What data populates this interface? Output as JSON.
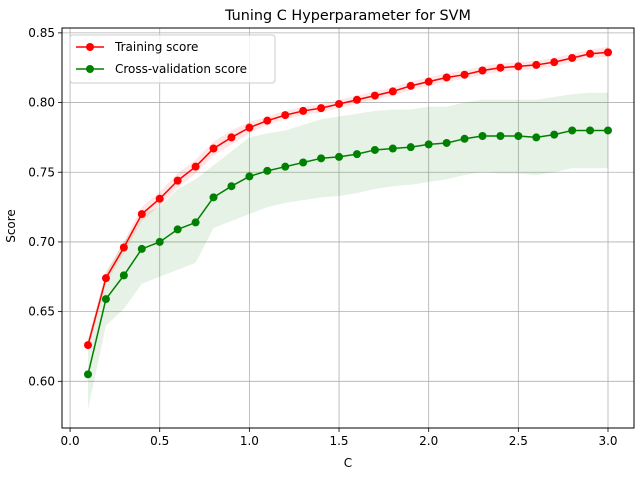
{
  "chart_data": {
    "type": "line",
    "title": "Tuning C Hyperparameter for SVM",
    "xlabel": "C",
    "ylabel": "Score",
    "xlim": [
      -0.045,
      3.145
    ],
    "ylim": [
      0.5665,
      0.8535
    ],
    "xticks": [
      0.0,
      0.5,
      1.0,
      1.5,
      2.0,
      2.5,
      3.0
    ],
    "xtick_labels": [
      "0.0",
      "0.5",
      "1.0",
      "1.5",
      "2.0",
      "2.5",
      "3.0"
    ],
    "yticks": [
      0.6,
      0.65,
      0.7,
      0.75,
      0.8,
      0.85
    ],
    "ytick_labels": [
      "0.60",
      "0.65",
      "0.70",
      "0.75",
      "0.80",
      "0.85"
    ],
    "grid": true,
    "legend_position": "upper-left",
    "x": [
      0.1,
      0.2,
      0.3,
      0.4,
      0.5,
      0.6,
      0.7,
      0.8,
      0.9,
      1.0,
      1.1,
      1.2,
      1.3,
      1.4,
      1.5,
      1.6,
      1.7,
      1.8,
      1.9,
      2.0,
      2.1,
      2.2,
      2.3,
      2.4,
      2.5,
      2.6,
      2.7,
      2.8,
      2.9,
      3.0
    ],
    "series": [
      {
        "name": "Training score",
        "color": "#ff0000",
        "values": [
          0.626,
          0.674,
          0.696,
          0.72,
          0.731,
          0.744,
          0.754,
          0.767,
          0.775,
          0.782,
          0.787,
          0.791,
          0.794,
          0.796,
          0.799,
          0.802,
          0.805,
          0.808,
          0.812,
          0.815,
          0.818,
          0.82,
          0.823,
          0.825,
          0.826,
          0.827,
          0.829,
          0.832,
          0.835,
          0.836
        ],
        "band_lower": [
          0.622,
          0.67,
          0.692,
          0.715,
          0.726,
          0.739,
          0.749,
          0.762,
          0.77,
          0.778,
          0.784,
          0.788,
          0.791,
          0.793,
          0.796,
          0.799,
          0.802,
          0.805,
          0.809,
          0.812,
          0.815,
          0.817,
          0.82,
          0.822,
          0.823,
          0.824,
          0.826,
          0.829,
          0.832,
          0.833
        ],
        "band_upper": [
          0.63,
          0.678,
          0.7,
          0.725,
          0.736,
          0.749,
          0.759,
          0.772,
          0.78,
          0.786,
          0.79,
          0.794,
          0.797,
          0.799,
          0.802,
          0.805,
          0.808,
          0.811,
          0.815,
          0.818,
          0.821,
          0.823,
          0.826,
          0.828,
          0.829,
          0.83,
          0.832,
          0.835,
          0.838,
          0.84
        ],
        "band_color": "#ff0000"
      },
      {
        "name": "Cross-validation score",
        "color": "#008000",
        "values": [
          0.605,
          0.659,
          0.676,
          0.695,
          0.7,
          0.709,
          0.714,
          0.732,
          0.74,
          0.747,
          0.751,
          0.754,
          0.757,
          0.76,
          0.761,
          0.763,
          0.766,
          0.767,
          0.768,
          0.77,
          0.771,
          0.774,
          0.776,
          0.776,
          0.776,
          0.775,
          0.777,
          0.78,
          0.78,
          0.78
        ],
        "band_lower": [
          0.58,
          0.64,
          0.652,
          0.67,
          0.675,
          0.68,
          0.685,
          0.71,
          0.715,
          0.72,
          0.725,
          0.728,
          0.73,
          0.732,
          0.733,
          0.735,
          0.738,
          0.74,
          0.741,
          0.743,
          0.745,
          0.748,
          0.75,
          0.749,
          0.749,
          0.748,
          0.75,
          0.753,
          0.753,
          0.753
        ],
        "band_upper": [
          0.63,
          0.678,
          0.7,
          0.72,
          0.725,
          0.738,
          0.745,
          0.755,
          0.765,
          0.775,
          0.778,
          0.78,
          0.784,
          0.788,
          0.79,
          0.792,
          0.794,
          0.795,
          0.795,
          0.797,
          0.797,
          0.8,
          0.802,
          0.802,
          0.802,
          0.802,
          0.804,
          0.806,
          0.807,
          0.807
        ],
        "band_color": "#008000"
      }
    ]
  }
}
